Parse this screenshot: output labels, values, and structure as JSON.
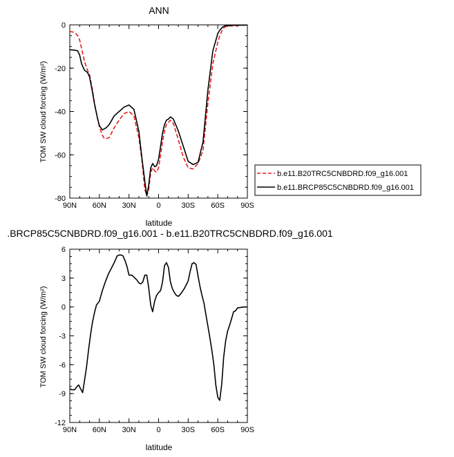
{
  "chart_data": [
    {
      "type": "line",
      "title": "ANN",
      "xlabel": "latitude",
      "ylabel": "TOM SW cloud forcing (W/m²)",
      "xlim": [
        90,
        -90
      ],
      "ylim": [
        -80,
        0
      ],
      "xticks": [
        90,
        60,
        30,
        0,
        -30,
        -60,
        -90
      ],
      "xtick_labels": [
        "90N",
        "60N",
        "30N",
        "0",
        "30S",
        "60S",
        "90S"
      ],
      "yticks": [
        0,
        -20,
        -40,
        -60,
        -80
      ],
      "ytick_labels": [
        "0",
        "-20",
        "-40",
        "-60",
        "-80"
      ],
      "grid": false,
      "legend_position": "right",
      "series": [
        {
          "name": "b.e11.B20TRC5CNBDRD.f09_g16.001",
          "color": "#e8191a",
          "dash": "dashed",
          "x": [
            90,
            85,
            82,
            80,
            78,
            75,
            72,
            70,
            67,
            65,
            62,
            60,
            57,
            55,
            53,
            50,
            45,
            40,
            35,
            30,
            25,
            20,
            17,
            14,
            12,
            10,
            8,
            6,
            4,
            2,
            0,
            -2,
            -4,
            -6,
            -8,
            -10,
            -12,
            -15,
            -20,
            -25,
            -30,
            -35,
            -40,
            -45,
            -50,
            -55,
            -60,
            -62,
            -65,
            -67,
            -70,
            -72,
            -75,
            -80,
            -85,
            -90
          ],
          "y": [
            -3,
            -3.5,
            -5,
            -7,
            -11,
            -17,
            -21,
            -23,
            -30,
            -36,
            -43,
            -47,
            -51,
            -52.5,
            -52.5,
            -52,
            -47.5,
            -44,
            -41,
            -40,
            -42,
            -52,
            -62,
            -76,
            -79,
            -76,
            -68,
            -66,
            -67.5,
            -68,
            -66,
            -60,
            -54,
            -49,
            -46,
            -45,
            -44,
            -45.5,
            -53,
            -61,
            -66,
            -66.5,
            -64,
            -58,
            -36,
            -18,
            -8,
            -5,
            -2,
            -1,
            -0.5,
            -0.5,
            -0.5,
            -0.3,
            -0.2,
            -0.2
          ]
        },
        {
          "name": "b.e11.BRCP85C5CNBDRD.f09_g16.001",
          "color": "#000000",
          "dash": "solid",
          "x": [
            90,
            85,
            82,
            80,
            78,
            75,
            72,
            70,
            67,
            65,
            62,
            60,
            57,
            55,
            53,
            50,
            45,
            40,
            35,
            30,
            25,
            20,
            17,
            14,
            12,
            10,
            8,
            6,
            4,
            2,
            0,
            -2,
            -4,
            -6,
            -8,
            -10,
            -12,
            -15,
            -20,
            -25,
            -30,
            -35,
            -40,
            -45,
            -50,
            -55,
            -60,
            -62,
            -65,
            -67,
            -70,
            -72,
            -75,
            -80,
            -85,
            -90
          ],
          "y": [
            -11.5,
            -11.7,
            -12,
            -14,
            -18,
            -21,
            -22,
            -24,
            -31,
            -36.5,
            -43,
            -46.5,
            -48.5,
            -48,
            -47.5,
            -46,
            -42,
            -40,
            -38,
            -37,
            -39,
            -49,
            -61,
            -72,
            -79,
            -74,
            -66,
            -64,
            -65.5,
            -65,
            -62,
            -56,
            -50,
            -46,
            -44,
            -43.5,
            -42.5,
            -43.5,
            -49,
            -56,
            -63,
            -64.5,
            -63.5,
            -54,
            -30,
            -12,
            -4,
            -2.5,
            -1,
            -0.5,
            -0.3,
            -0.3,
            -0.2,
            -0.2,
            -0.1,
            -0.1
          ]
        }
      ]
    },
    {
      "type": "line",
      "title": ".BRCP85C5CNBDRD.f09_g16.001 - b.e11.B20TRC5CNBDRD.f09_g16.001",
      "xlabel": "latitude",
      "ylabel": "TOM SW cloud forcing (W/m²)",
      "xlim": [
        90,
        -90
      ],
      "ylim": [
        -12,
        6
      ],
      "xticks": [
        90,
        60,
        30,
        0,
        -30,
        -60,
        -90
      ],
      "xtick_labels": [
        "90N",
        "60N",
        "30N",
        "0",
        "30S",
        "60S",
        "90S"
      ],
      "yticks": [
        6,
        3,
        0,
        -3,
        -6,
        -9,
        -12
      ],
      "ytick_labels": [
        "6",
        "3",
        "0",
        "-3",
        "-6",
        "-9",
        "-12"
      ],
      "grid": false,
      "series": [
        {
          "color": "#000000",
          "dash": "solid",
          "x": [
            90,
            88,
            85,
            83,
            81,
            79,
            77,
            75,
            73,
            71,
            69,
            67,
            65,
            63,
            60,
            57,
            54,
            51,
            48,
            45,
            42,
            40,
            38,
            36,
            34,
            32,
            30,
            27,
            24,
            22,
            20,
            18,
            16,
            14,
            12,
            10,
            8,
            6,
            4,
            2,
            0,
            -2,
            -4,
            -6,
            -8,
            -10,
            -12,
            -14,
            -16,
            -18,
            -20,
            -22,
            -24,
            -26,
            -28,
            -30,
            -32,
            -34,
            -36,
            -38,
            -40,
            -42,
            -44,
            -46,
            -48,
            -50,
            -52,
            -54,
            -56,
            -58,
            -60,
            -62,
            -64,
            -66,
            -68,
            -70,
            -72,
            -74,
            -76,
            -78,
            -80,
            -83,
            -86,
            -90
          ],
          "y": [
            -8.5,
            -8.6,
            -8.6,
            -8.3,
            -8.1,
            -8.5,
            -8.9,
            -7.6,
            -6.2,
            -4.5,
            -2.9,
            -1.6,
            -0.6,
            0.2,
            0.6,
            1.7,
            2.6,
            3.4,
            4.0,
            4.6,
            5.3,
            5.4,
            5.4,
            5.3,
            4.8,
            4.2,
            3.3,
            3.3,
            3.0,
            2.8,
            2.5,
            2.4,
            2.6,
            3.3,
            3.3,
            2.0,
            0.2,
            -0.5,
            0.6,
            1.2,
            1.5,
            1.7,
            2.6,
            4.3,
            4.6,
            4.1,
            2.6,
            1.9,
            1.5,
            1.2,
            1.1,
            1.3,
            1.6,
            1.9,
            2.3,
            2.7,
            3.7,
            4.5,
            4.6,
            4.4,
            3.2,
            2.1,
            1.2,
            0.4,
            -0.8,
            -2.0,
            -3.2,
            -4.5,
            -6.0,
            -8.1,
            -9.4,
            -9.7,
            -8.0,
            -5.2,
            -3.5,
            -2.5,
            -1.9,
            -1.2,
            -0.5,
            -0.4,
            -0.1,
            -0.05,
            0,
            0
          ]
        }
      ]
    }
  ]
}
